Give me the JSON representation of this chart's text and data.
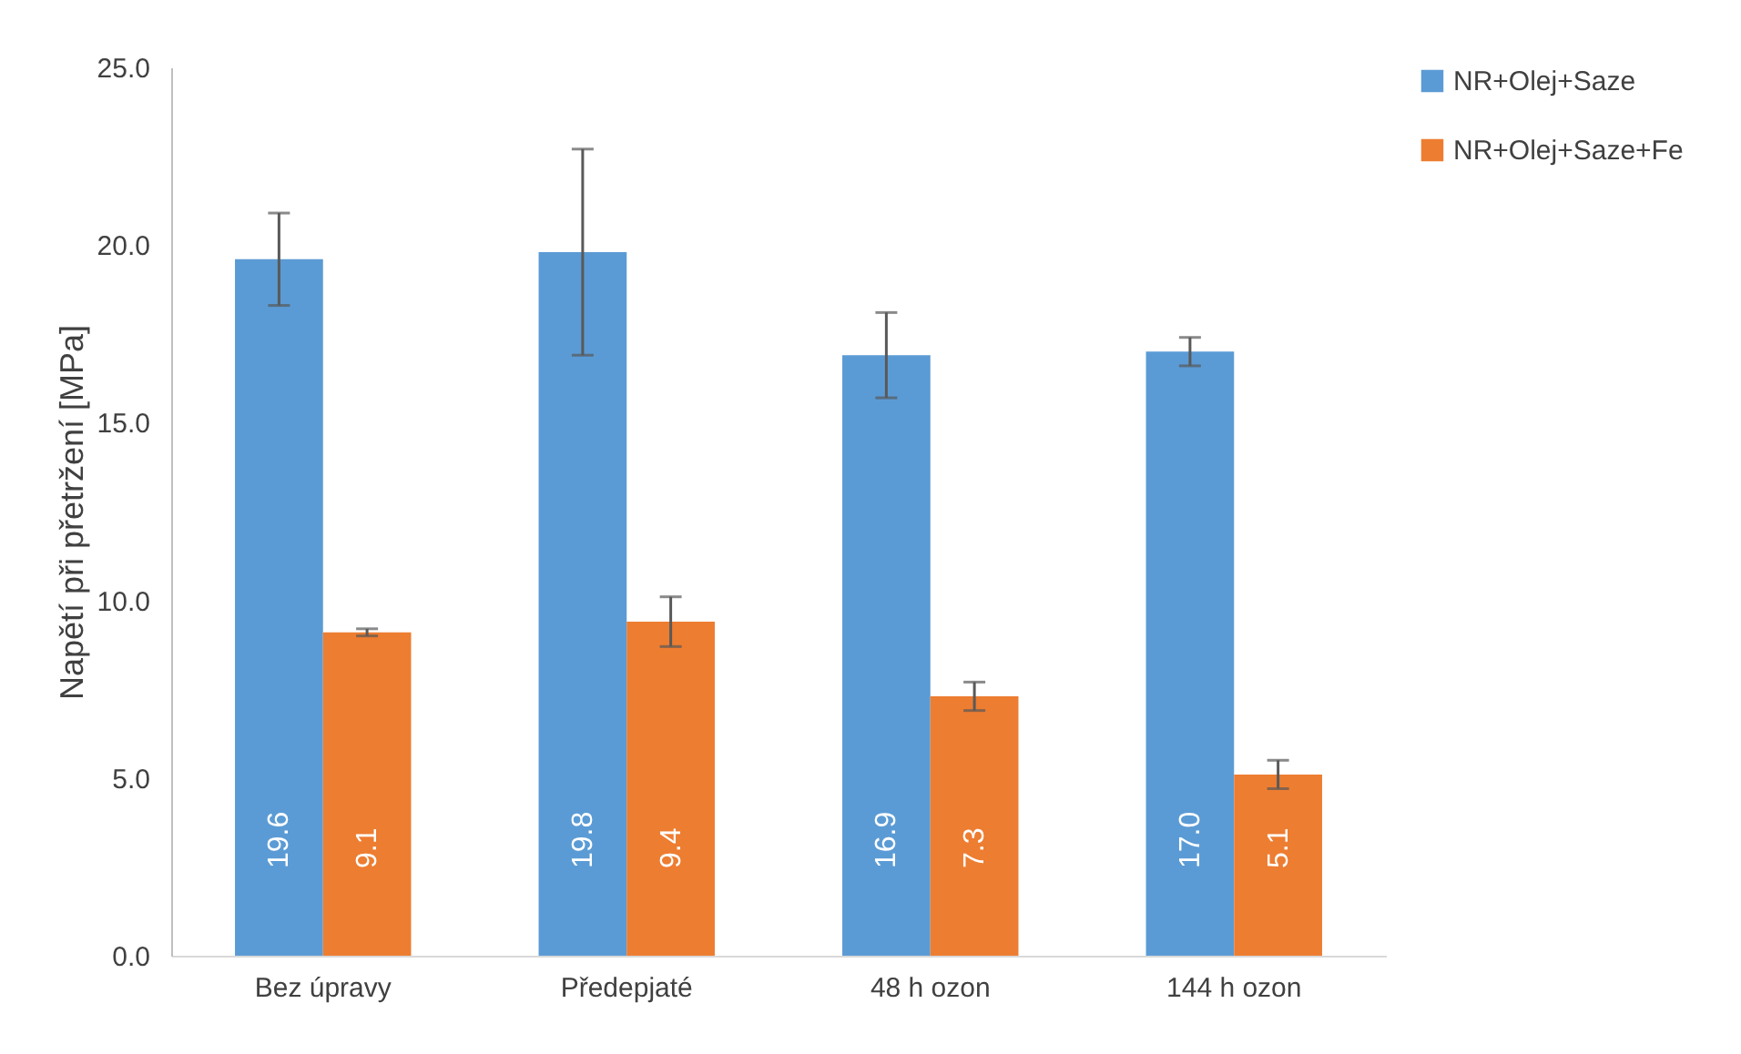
{
  "chart_data": {
    "type": "bar",
    "ylabel": "Napětí při přetržení [MPa]",
    "categories": [
      "Bez úpravy",
      "Předepjaté",
      "48 h ozon",
      "144 h ozon"
    ],
    "series": [
      {
        "name": "NR+Olej+Saze",
        "color": "#5b9bd5",
        "values": [
          19.6,
          19.8,
          16.9,
          17.0
        ],
        "value_labels": [
          "19.6",
          "19.8",
          "16.9",
          "17.0"
        ],
        "errors": [
          1.3,
          2.9,
          1.2,
          0.4
        ]
      },
      {
        "name": "NR+Olej+Saze+Fe",
        "color": "#ed7d31",
        "values": [
          9.1,
          9.4,
          7.3,
          5.1
        ],
        "value_labels": [
          "9.1",
          "9.4",
          "7.3",
          "5.1"
        ],
        "errors": [
          0.1,
          0.7,
          0.4,
          0.4
        ]
      }
    ],
    "ylim": [
      0,
      25
    ],
    "yticks": [
      {
        "value": 0,
        "label": "0.0"
      },
      {
        "value": 5,
        "label": "5.0"
      },
      {
        "value": 10,
        "label": "10.0"
      },
      {
        "value": 15,
        "label": "15.0"
      },
      {
        "value": 20,
        "label": "20.0"
      },
      {
        "value": 25,
        "label": "25.0"
      }
    ],
    "grid": false,
    "legend": "right"
  }
}
